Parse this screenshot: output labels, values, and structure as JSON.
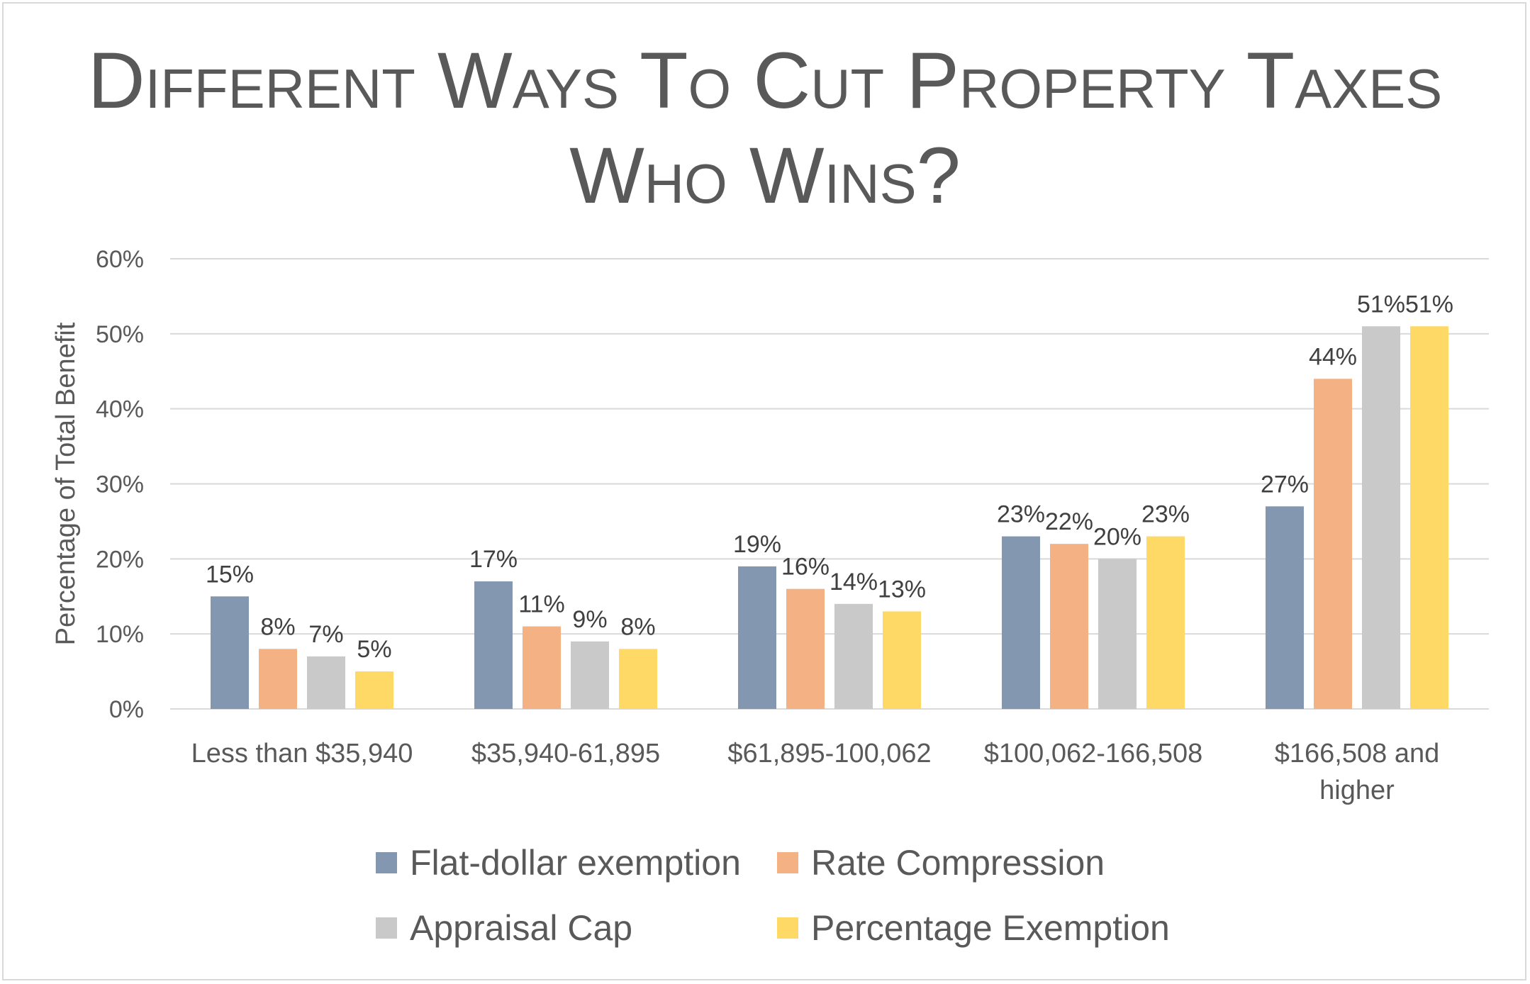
{
  "chart_data": {
    "type": "bar",
    "title": "Different Ways To Cut Property Taxes",
    "subtitle": "Who Wins?",
    "xlabel": "",
    "ylabel": "Percentage of Total Benefit",
    "ylim": [
      0,
      60
    ],
    "yticks": [
      "0%",
      "10%",
      "20%",
      "30%",
      "40%",
      "50%",
      "60%"
    ],
    "categories": [
      [
        "Less than $35,940"
      ],
      [
        "$35,940-61,895"
      ],
      [
        "$61,895-100,062"
      ],
      [
        "$100,062-166,508"
      ],
      [
        "$166,508 and",
        "higher"
      ]
    ],
    "series": [
      {
        "name": "Flat-dollar exemption",
        "color": "#8497b0",
        "values": [
          15,
          17,
          19,
          23,
          27
        ]
      },
      {
        "name": "Rate Compression",
        "color": "#f4b183",
        "values": [
          8,
          11,
          16,
          22,
          44
        ]
      },
      {
        "name": "Appraisal Cap",
        "color": "#c9c9c9",
        "values": [
          7,
          9,
          14,
          20,
          51
        ]
      },
      {
        "name": "Percentage Exemption",
        "color": "#ffd966",
        "values": [
          5,
          8,
          13,
          23,
          51
        ]
      }
    ],
    "data_labels": [
      [
        "15%",
        "8%",
        "7%",
        "5%"
      ],
      [
        "17%",
        "11%",
        "9%",
        "8%"
      ],
      [
        "19%",
        "16%",
        "14%",
        "13%"
      ],
      [
        "23%",
        "22%",
        "20%",
        "23%"
      ],
      [
        "27%",
        "44%",
        "51%",
        "51%"
      ]
    ],
    "grid": true,
    "legend_position": "bottom"
  }
}
